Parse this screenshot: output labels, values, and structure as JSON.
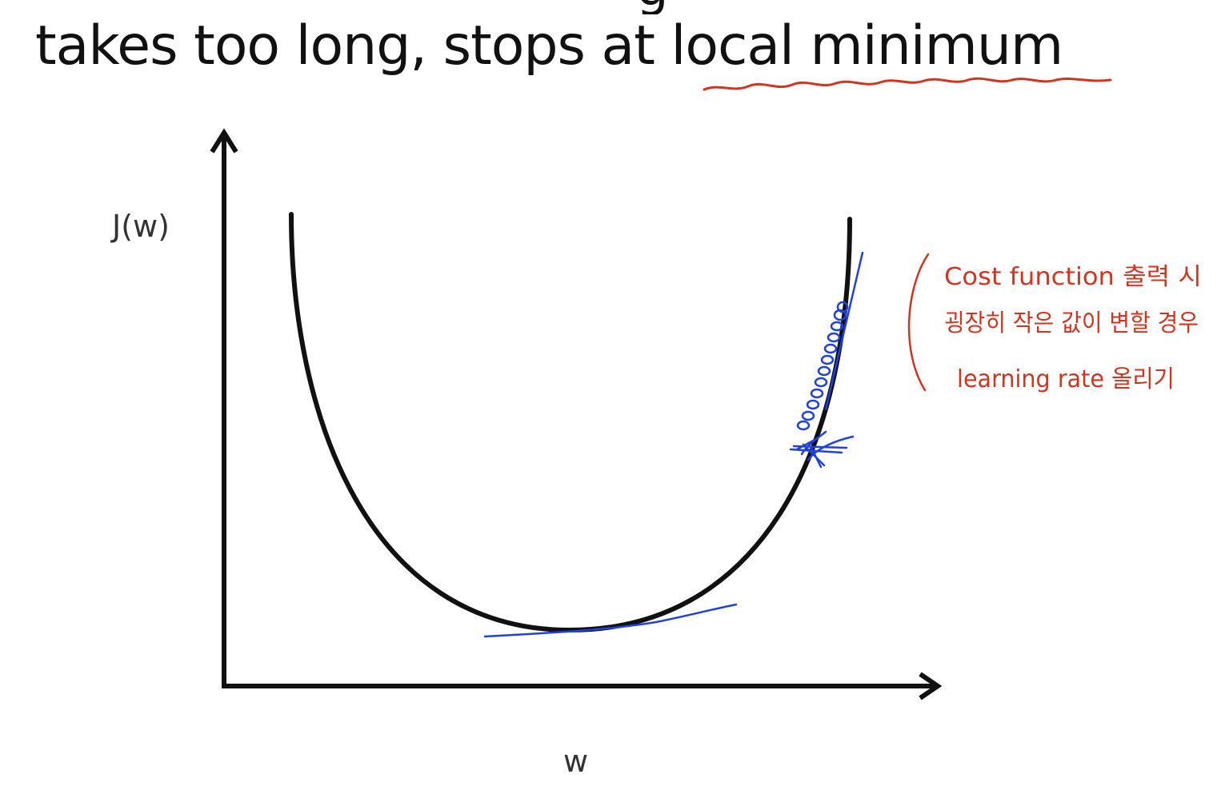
{
  "slide": {
    "title_prefix": "takes too long, stops at ",
    "title_highlight": "local minimum",
    "clipped_heading_fragment": "g"
  },
  "diagram": {
    "y_axis_label": "J(w)",
    "x_axis_label": "w",
    "curve_color": "#111111",
    "pen_blue": "#2140e0",
    "pen_red": "#d2351f"
  },
  "annotation": {
    "lines": [
      "Cost function 출력 시",
      "굉장히 작은 값이 변할 경우",
      "learning rate 올리기"
    ]
  }
}
